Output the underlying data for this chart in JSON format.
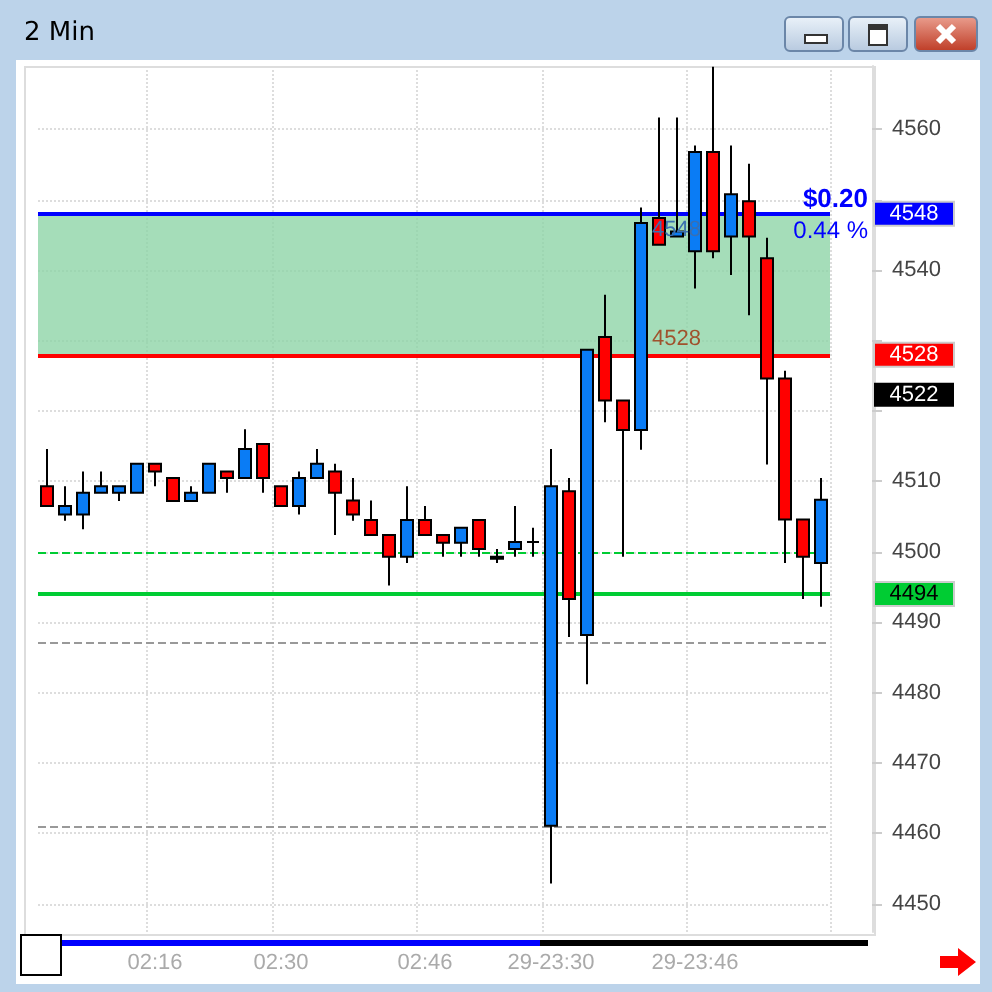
{
  "chart_data": {
    "type": "candlestick",
    "title": "2 Min",
    "categories": [
      null,
      null,
      null,
      null,
      null,
      null,
      "02:16",
      null,
      null,
      null,
      null,
      null,
      null,
      "02:30",
      null,
      null,
      null,
      null,
      null,
      null,
      null,
      "02:46",
      null,
      null,
      null,
      null,
      null,
      null,
      "29-23:30",
      null,
      null,
      null,
      null,
      null,
      null,
      null,
      "29-23:46",
      null,
      null,
      null,
      null,
      null,
      null,
      null
    ],
    "ohlc": [
      [
        4509.3,
        4514.6,
        4506.5,
        4506.5
      ],
      [
        4505.3,
        4509.3,
        4504.4,
        4506.5
      ],
      [
        4505.3,
        4511.4,
        4503.2,
        4508.4
      ],
      [
        4508.4,
        4511.4,
        4508.4,
        4509.3
      ],
      [
        4508.4,
        4509.3,
        4507.2,
        4509.3
      ],
      [
        4508.4,
        4512.5,
        4508.4,
        4512.5
      ],
      [
        4512.5,
        4512.5,
        4509.3,
        4511.4
      ],
      [
        4510.5,
        4510.5,
        4507.2,
        4507.2
      ],
      [
        4507.2,
        4509.3,
        4507.2,
        4508.4
      ],
      [
        4508.4,
        4512.5,
        4508.4,
        4512.5
      ],
      [
        4511.4,
        4511.4,
        4508.4,
        4510.5
      ],
      [
        4510.5,
        4517.4,
        4510.5,
        4514.6
      ],
      [
        4515.3,
        4515.3,
        4508.4,
        4510.5
      ],
      [
        4509.3,
        4509.3,
        4506.5,
        4506.5
      ],
      [
        4506.5,
        4511.4,
        4505.3,
        4510.5
      ],
      [
        4510.5,
        4514.6,
        4510.5,
        4512.5
      ],
      [
        4511.4,
        4512.5,
        4502.4,
        4508.4
      ],
      [
        4507.3,
        4510.5,
        4504.4,
        4505.3
      ],
      [
        4504.5,
        4507.3,
        4502.4,
        4502.4
      ],
      [
        4502.4,
        4502.4,
        4495.2,
        4499.3
      ],
      [
        4499.3,
        4509.3,
        4498.4,
        4504.5
      ],
      [
        4504.5,
        4506.5,
        4502.4,
        4502.4
      ],
      [
        4502.4,
        4502.4,
        4499.3,
        4501.3
      ],
      [
        4501.3,
        4503.4,
        4499.3,
        4503.4
      ],
      [
        4504.5,
        4504.5,
        4499.3,
        4500.4
      ],
      [
        4499.0,
        4500.4,
        4498.4,
        4499.3
      ],
      [
        4500.4,
        4506.5,
        4499.3,
        4501.4
      ],
      [
        4501.4,
        4503.4,
        4499.3,
        4501.4
      ],
      [
        4461.1,
        4514.6,
        4452.9,
        4509.3
      ],
      [
        4508.6,
        4510.5,
        4487.9,
        4493.3
      ],
      [
        4488.2,
        4528.7,
        4481.2,
        4528.7
      ],
      [
        4530.5,
        4536.5,
        4518.4,
        4521.5
      ],
      [
        4521.5,
        4521.5,
        4499.3,
        4517.3
      ],
      [
        4517.3,
        4548.9,
        4514.5,
        4546.7
      ],
      [
        4547.4,
        4561.7,
        4543.6,
        4543.6
      ],
      [
        4544.8,
        4561.7,
        4544.8,
        4545.5
      ],
      [
        4542.7,
        4557.7,
        4537.4,
        4556.8
      ],
      [
        4556.8,
        4568.9,
        4541.7,
        4542.7
      ],
      [
        4544.8,
        4557.7,
        4539.3,
        4550.8
      ],
      [
        4549.8,
        4555.1,
        4533.6,
        4544.8
      ],
      [
        4541.7,
        4544.6,
        4512.4,
        4524.6
      ],
      [
        4524.6,
        4525.7,
        4498.4,
        4504.6
      ],
      [
        4504.6,
        4504.6,
        4493.3,
        4499.3
      ],
      [
        4498.4,
        4510.5,
        4492.2,
        4507.4
      ]
    ],
    "ylim": [
      4446,
      4569
    ],
    "yticks": [
      4450,
      4460,
      4470,
      4480,
      4490,
      4500,
      4510,
      {
        "value": 4520,
        "label": null
      },
      {
        "value": 4530,
        "label": null
      },
      4540,
      {
        "value": 4550,
        "label": null
      },
      4560
    ],
    "grid": true,
    "ref_lines": [
      {
        "axis": "y",
        "value": 4548,
        "label": "4548",
        "color": "#0000ff",
        "line_style": "solid"
      },
      {
        "axis": "y",
        "value": 4528,
        "label": "4528",
        "color": "#ff0000",
        "line_style": "solid"
      },
      {
        "axis": "y",
        "value": 4494,
        "label": "4494",
        "color": "#00cc33",
        "line_style": "solid"
      },
      {
        "axis": "y",
        "value": 4500,
        "label": null,
        "color": "#00cc33",
        "line_style": "dashed"
      },
      {
        "axis": "y",
        "value": 4487,
        "label": null,
        "color": "#999999",
        "line_style": "dashed"
      },
      {
        "axis": "y",
        "value": 4461,
        "label": null,
        "color": "#999999",
        "line_style": "dashed"
      }
    ],
    "bands": [
      {
        "axis": "y",
        "from": 4528,
        "to": 4548,
        "label": null,
        "color": "#8fd4a8"
      }
    ],
    "annotations": [
      "$0.20",
      "0.44 %",
      {
        "text": "4548",
        "y": 4548
      },
      {
        "text": "4528",
        "y": 4528
      },
      "4522"
    ]
  }
}
